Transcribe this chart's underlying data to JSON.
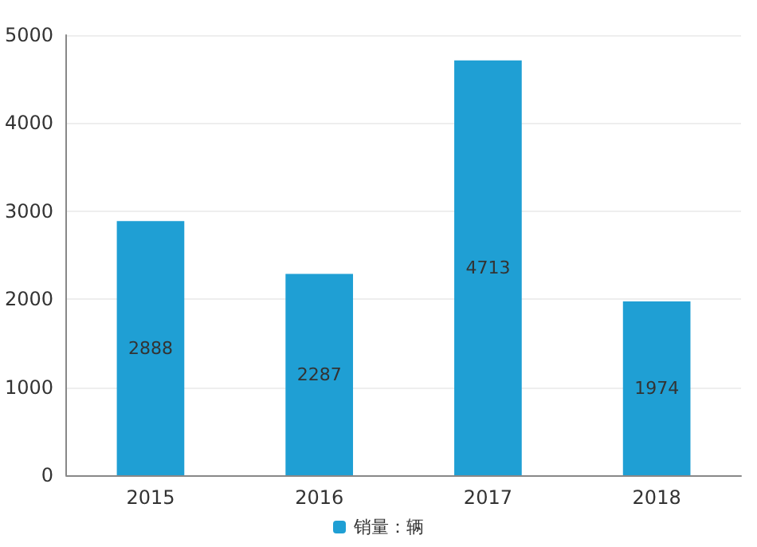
{
  "chart_data": {
    "type": "bar",
    "categories": [
      "2015",
      "2016",
      "2017",
      "2018"
    ],
    "series": [
      {
        "name": "销量：辆",
        "color": "#1f9fd4",
        "values": [
          2888,
          2287,
          4713,
          1974
        ]
      }
    ],
    "ylim": [
      0,
      5000
    ],
    "yticks": [
      0,
      1000,
      2000,
      3000,
      4000,
      5000
    ],
    "grid": "y",
    "legend": "bottom",
    "data_labels": true
  }
}
